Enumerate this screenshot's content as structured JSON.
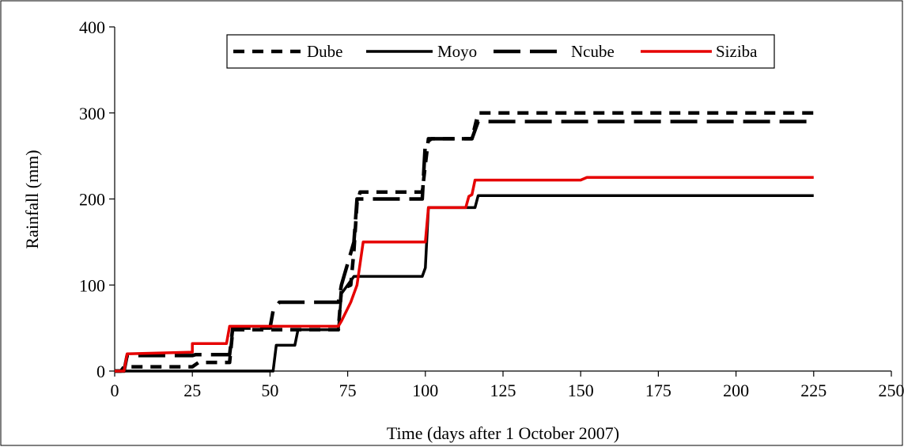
{
  "chart_data": {
    "type": "line",
    "title": "",
    "xlabel": "Time (days after 1 October 2007)",
    "ylabel": "Rainfall (mm)",
    "xlim": [
      0,
      250
    ],
    "ylim": [
      0,
      400
    ],
    "xticks": [
      0,
      25,
      50,
      75,
      100,
      125,
      150,
      175,
      200,
      225,
      250
    ],
    "yticks": [
      0,
      100,
      200,
      300,
      400
    ],
    "grid": false,
    "legend_position": "top",
    "series": [
      {
        "name": "Dube",
        "color": "#000000",
        "dash": "short-dash",
        "points": [
          [
            0,
            0
          ],
          [
            2,
            0
          ],
          [
            3,
            5
          ],
          [
            25,
            5
          ],
          [
            27,
            10
          ],
          [
            37,
            10
          ],
          [
            38,
            48
          ],
          [
            72,
            48
          ],
          [
            73,
            95
          ],
          [
            76,
            100
          ],
          [
            77,
            140
          ],
          [
            78,
            195
          ],
          [
            79,
            208
          ],
          [
            99,
            208
          ],
          [
            100,
            240
          ],
          [
            101,
            270
          ],
          [
            115,
            270
          ],
          [
            117,
            300
          ],
          [
            225,
            300
          ]
        ]
      },
      {
        "name": "Moyo",
        "color": "#000000",
        "dash": "solid",
        "points": [
          [
            0,
            0
          ],
          [
            51,
            0
          ],
          [
            52,
            30
          ],
          [
            58,
            30
          ],
          [
            59,
            48
          ],
          [
            72,
            48
          ],
          [
            73,
            90
          ],
          [
            77,
            110
          ],
          [
            99,
            110
          ],
          [
            100,
            120
          ],
          [
            101,
            190
          ],
          [
            116,
            190
          ],
          [
            117,
            204
          ],
          [
            225,
            204
          ]
        ]
      },
      {
        "name": "Ncube",
        "color": "#000000",
        "dash": "long-dash",
        "points": [
          [
            0,
            0
          ],
          [
            3,
            0
          ],
          [
            4,
            18
          ],
          [
            25,
            18
          ],
          [
            26,
            19
          ],
          [
            37,
            19
          ],
          [
            38,
            50
          ],
          [
            50,
            50
          ],
          [
            51,
            70
          ],
          [
            53,
            80
          ],
          [
            72,
            80
          ],
          [
            73,
            100
          ],
          [
            77,
            150
          ],
          [
            78,
            200
          ],
          [
            99,
            200
          ],
          [
            100,
            265
          ],
          [
            102,
            270
          ],
          [
            115,
            270
          ],
          [
            117,
            290
          ],
          [
            225,
            290
          ]
        ]
      },
      {
        "name": "Siziba",
        "color": "#e60000",
        "dash": "solid",
        "points": [
          [
            0,
            0
          ],
          [
            3,
            0
          ],
          [
            4,
            20
          ],
          [
            25,
            22
          ],
          [
            25,
            32
          ],
          [
            36,
            32
          ],
          [
            37,
            52
          ],
          [
            72,
            52
          ],
          [
            73,
            58
          ],
          [
            76,
            80
          ],
          [
            78,
            100
          ],
          [
            80,
            150
          ],
          [
            100,
            150
          ],
          [
            101,
            190
          ],
          [
            113,
            190
          ],
          [
            114,
            203
          ],
          [
            115,
            205
          ],
          [
            116,
            222
          ],
          [
            150,
            222
          ],
          [
            152,
            225
          ],
          [
            225,
            225
          ]
        ]
      }
    ]
  }
}
